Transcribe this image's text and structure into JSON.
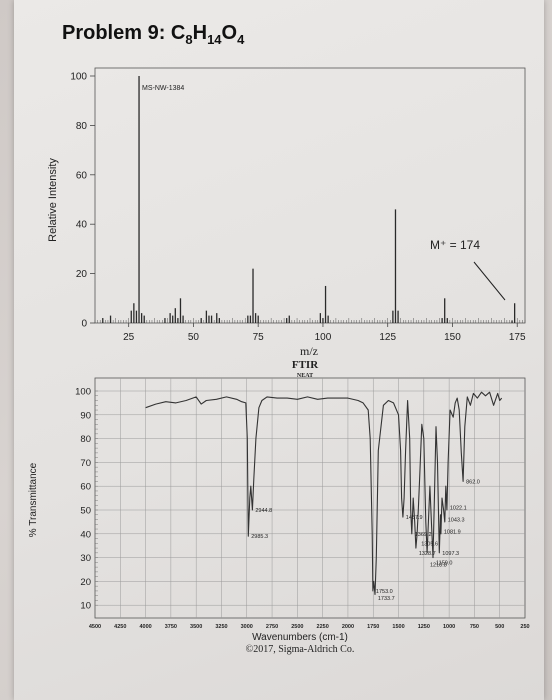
{
  "title_prefix": "Problem 9: ",
  "formula": [
    {
      "t": "C",
      "sub": "8"
    },
    {
      "t": "H",
      "sub": "14"
    },
    {
      "t": "O",
      "sub": "4"
    }
  ],
  "colors": {
    "ms_line": "#2a2a2a",
    "ir_line": "#333333",
    "grid": "#9a9a9a"
  },
  "chart_data": [
    {
      "type": "bar",
      "ylabel": "Relative Intensity",
      "xlabel": "m/z",
      "sample_id": "MS-NW-1384",
      "annotation": "M⁺ = 174",
      "xlim": [
        12,
        178
      ],
      "ylim": [
        0,
        100
      ],
      "x_ticks": [
        25,
        50,
        75,
        100,
        125,
        150,
        175
      ],
      "y_ticks": [
        0,
        20,
        40,
        60,
        80,
        100
      ],
      "peaks": [
        [
          15,
          2
        ],
        [
          18,
          3
        ],
        [
          26,
          5
        ],
        [
          27,
          8
        ],
        [
          28,
          5
        ],
        [
          29,
          100
        ],
        [
          30,
          4
        ],
        [
          31,
          3
        ],
        [
          39,
          2
        ],
        [
          41,
          4
        ],
        [
          42,
          3
        ],
        [
          43,
          6
        ],
        [
          44,
          2
        ],
        [
          45,
          10
        ],
        [
          46,
          3
        ],
        [
          53,
          2
        ],
        [
          55,
          5
        ],
        [
          56,
          3
        ],
        [
          57,
          3
        ],
        [
          59,
          4
        ],
        [
          60,
          2
        ],
        [
          71,
          3
        ],
        [
          72,
          3
        ],
        [
          73,
          22
        ],
        [
          74,
          4
        ],
        [
          75,
          3
        ],
        [
          86,
          2
        ],
        [
          87,
          3
        ],
        [
          99,
          4
        ],
        [
          100,
          2
        ],
        [
          101,
          15
        ],
        [
          102,
          3
        ],
        [
          127,
          5
        ],
        [
          128,
          46
        ],
        [
          129,
          5
        ],
        [
          146,
          2
        ],
        [
          147,
          10
        ],
        [
          148,
          2
        ],
        [
          173,
          1
        ],
        [
          174,
          8
        ]
      ]
    },
    {
      "type": "line",
      "header_line1": "FTIR",
      "header_line2": "NEAT",
      "ylabel": "% Transmittance",
      "xlabel": "Wavenumbers (cm-1)",
      "copyright": "©2017, Sigma-Aldrich Co.",
      "xlim": [
        4500,
        250
      ],
      "ylim": [
        5,
        102
      ],
      "x_ticks": [
        4500,
        4250,
        4000,
        3750,
        3500,
        3250,
        3000,
        2750,
        2500,
        2250,
        2000,
        1750,
        1500,
        1250,
        1000,
        750,
        500,
        250
      ],
      "y_ticks": [
        10,
        20,
        30,
        40,
        50,
        60,
        70,
        80,
        90,
        100
      ],
      "series": [
        {
          "x": [
            4000,
            3900,
            3800,
            3700,
            3600,
            3500,
            3450,
            3400,
            3300,
            3200,
            3100,
            3050,
            3010,
            2995,
            2985,
            2970,
            2960,
            2944,
            2930,
            2910,
            2880,
            2850,
            2800,
            2700,
            2600,
            2500,
            2400,
            2300,
            2200,
            2100,
            2000,
            1900,
            1850,
            1800,
            1780,
            1760,
            1753,
            1745,
            1733,
            1720,
            1700,
            1650,
            1600,
            1550,
            1500,
            1480,
            1470,
            1457,
            1445,
            1430,
            1410,
            1390,
            1380,
            1369,
            1355,
            1340,
            1328,
            1316,
            1305,
            1290,
            1270,
            1250,
            1230,
            1218,
            1205,
            1190,
            1175,
            1159,
            1145,
            1130,
            1115,
            1097,
            1085,
            1081,
            1070,
            1055,
            1043,
            1033,
            1022,
            1010,
            990,
            960,
            940,
            920,
            900,
            880,
            862,
            845,
            820,
            790,
            760,
            720,
            680,
            640,
            600,
            560,
            520,
            500,
            480
          ],
          "y": [
            93.0,
            94.5,
            95.5,
            95.0,
            96.0,
            97.5,
            94.5,
            96.0,
            96.5,
            97.5,
            96.5,
            95.5,
            95.0,
            80.0,
            39.0,
            55.0,
            60.0,
            50.0,
            63.0,
            80.0,
            93.0,
            96.0,
            97.5,
            97.0,
            97.0,
            96.5,
            97.5,
            96.5,
            97.0,
            97.0,
            97.0,
            96.0,
            95.0,
            92.0,
            80.0,
            40.0,
            16.0,
            20.0,
            14.5,
            30.0,
            75.0,
            94.0,
            96.0,
            95.0,
            90.0,
            75.0,
            55.0,
            47.0,
            55.0,
            75.0,
            96.0,
            80.0,
            50.0,
            40.0,
            55.0,
            45.0,
            34.0,
            40.0,
            50.0,
            65.0,
            86.0,
            80.0,
            45.0,
            32.0,
            45.0,
            60.0,
            45.0,
            30.0,
            55.0,
            85.0,
            70.0,
            32.0,
            48.0,
            40.0,
            55.0,
            50.0,
            45.0,
            60.0,
            50.0,
            70.0,
            92.0,
            89.0,
            95.0,
            97.0,
            92.0,
            74.0,
            62.0,
            85.0,
            97.5,
            94.0,
            99.0,
            97.0,
            99.5,
            98.0,
            99.5,
            94.0,
            99.0,
            96.0,
            97.0
          ]
        }
      ],
      "peak_labels": [
        {
          "x": 2944.8,
          "y": 50,
          "text": "2944.8"
        },
        {
          "x": 2985.3,
          "y": 39,
          "text": "2985.3"
        },
        {
          "x": 1457.9,
          "y": 47,
          "text": "1457.9"
        },
        {
          "x": 1369.2,
          "y": 40,
          "text": "1369.2"
        },
        {
          "x": 1305.6,
          "y": 36,
          "text": "1305.6"
        },
        {
          "x": 1328.7,
          "y": 32,
          "text": "1328.7"
        },
        {
          "x": 1218.8,
          "y": 27,
          "text": "1218.8"
        },
        {
          "x": 1753.0,
          "y": 16,
          "text": "1753.0"
        },
        {
          "x": 1733.7,
          "y": 13,
          "text": "1733.7"
        },
        {
          "x": 1022.1,
          "y": 51,
          "text": "1022.1"
        },
        {
          "x": 1043.3,
          "y": 46,
          "text": "1043.3"
        },
        {
          "x": 1081.9,
          "y": 41,
          "text": "1081.9"
        },
        {
          "x": 1097.3,
          "y": 32,
          "text": "1097.3"
        },
        {
          "x": 1159.0,
          "y": 28,
          "text": "1159.0"
        },
        {
          "x": 862.0,
          "y": 62,
          "text": "862.0"
        }
      ]
    }
  ]
}
